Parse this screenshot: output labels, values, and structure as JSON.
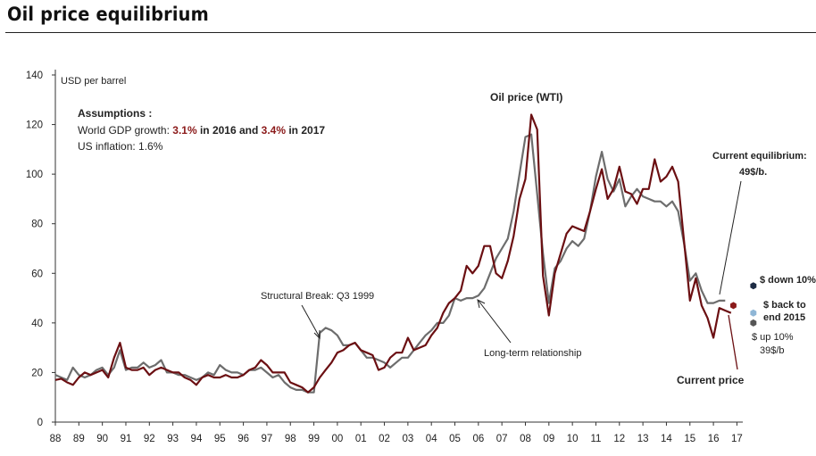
{
  "header": {
    "title": "Oil price equilibrium"
  },
  "assumptions": {
    "heading": "Assumptions :",
    "gdp_prefix": "World GDP growth: ",
    "gdp_2016": "3.1%",
    "gdp_mid": " in 2016 and ",
    "gdp_2017": "3.4%",
    "gdp_suffix": " in 2017",
    "inflation": "US inflation: 1.6%"
  },
  "annotations": {
    "structural_break": "Structural Break: Q3 1999",
    "long_term": "Long-term relationship",
    "oil_price_label": "Oil price (WTI)",
    "current_equilibrium_line1": "Current equilibrium:",
    "current_equilibrium_line2": "49$/b.",
    "current_price": "Current price",
    "down_10": "$ down 10%",
    "back_to_2015_line1": "$ back to",
    "back_to_2015_line2": "end 2015",
    "up_10_line1": "$ up 10%",
    "up_10_line2": "39$/b"
  },
  "colors": {
    "oil_price": "#6b0f12",
    "equilibrium": "#6d6d6d",
    "gdp_highlight": "#8b1a1a",
    "scenario_down": "#1d2b44",
    "scenario_back": "#8fb6d6",
    "scenario_up": "#555555",
    "current_price": "#8b1a1a"
  },
  "chart_data": {
    "type": "line",
    "title": "Oil price equilibrium",
    "ylabel": "USD per barrel",
    "xlabel": "",
    "ylim": [
      0,
      140
    ],
    "yticks": [
      0,
      20,
      40,
      60,
      80,
      100,
      120,
      140
    ],
    "xlim": [
      1988,
      2017.6
    ],
    "xticks": [
      "88",
      "89",
      "90",
      "91",
      "92",
      "93",
      "94",
      "95",
      "96",
      "97",
      "98",
      "99",
      "00",
      "01",
      "02",
      "03",
      "04",
      "05",
      "06",
      "07",
      "08",
      "09",
      "10",
      "11",
      "12",
      "13",
      "14",
      "15",
      "16",
      "17"
    ],
    "series": [
      {
        "name": "Oil price (WTI)",
        "points": [
          [
            1988.0,
            17
          ],
          [
            1988.25,
            17.5
          ],
          [
            1988.5,
            16
          ],
          [
            1988.75,
            15
          ],
          [
            1989.0,
            18
          ],
          [
            1989.25,
            20
          ],
          [
            1989.5,
            19
          ],
          [
            1989.75,
            20
          ],
          [
            1990.0,
            21
          ],
          [
            1990.25,
            18
          ],
          [
            1990.5,
            26
          ],
          [
            1990.75,
            32
          ],
          [
            1991.0,
            22
          ],
          [
            1991.25,
            21
          ],
          [
            1991.5,
            21
          ],
          [
            1991.75,
            22
          ],
          [
            1992.0,
            19
          ],
          [
            1992.25,
            21
          ],
          [
            1992.5,
            22
          ],
          [
            1992.75,
            21
          ],
          [
            1993.0,
            20
          ],
          [
            1993.25,
            20
          ],
          [
            1993.5,
            18
          ],
          [
            1993.75,
            17
          ],
          [
            1994.0,
            15
          ],
          [
            1994.25,
            18
          ],
          [
            1994.5,
            19
          ],
          [
            1994.75,
            18
          ],
          [
            1995.0,
            18
          ],
          [
            1995.25,
            19
          ],
          [
            1995.5,
            18
          ],
          [
            1995.75,
            18
          ],
          [
            1996.0,
            19
          ],
          [
            1996.25,
            21
          ],
          [
            1996.5,
            22
          ],
          [
            1996.75,
            25
          ],
          [
            1997.0,
            23
          ],
          [
            1997.25,
            20
          ],
          [
            1997.5,
            20
          ],
          [
            1997.75,
            20
          ],
          [
            1998.0,
            16
          ],
          [
            1998.25,
            15
          ],
          [
            1998.5,
            14
          ],
          [
            1998.75,
            12
          ],
          [
            1999.0,
            14
          ],
          [
            1999.25,
            18
          ],
          [
            1999.5,
            21
          ],
          [
            1999.75,
            24
          ],
          [
            2000.0,
            28
          ],
          [
            2000.25,
            29
          ],
          [
            2000.5,
            31
          ],
          [
            2000.75,
            32
          ],
          [
            2001.0,
            29
          ],
          [
            2001.25,
            28
          ],
          [
            2001.5,
            27
          ],
          [
            2001.75,
            21
          ],
          [
            2002.0,
            22
          ],
          [
            2002.25,
            26
          ],
          [
            2002.5,
            28
          ],
          [
            2002.75,
            28
          ],
          [
            2003.0,
            34
          ],
          [
            2003.25,
            29
          ],
          [
            2003.5,
            30
          ],
          [
            2003.75,
            31
          ],
          [
            2004.0,
            35
          ],
          [
            2004.25,
            38
          ],
          [
            2004.5,
            44
          ],
          [
            2004.75,
            48
          ],
          [
            2005.0,
            50
          ],
          [
            2005.25,
            53
          ],
          [
            2005.5,
            63
          ],
          [
            2005.75,
            60
          ],
          [
            2006.0,
            63
          ],
          [
            2006.25,
            71
          ],
          [
            2006.5,
            71
          ],
          [
            2006.75,
            60
          ],
          [
            2007.0,
            58
          ],
          [
            2007.25,
            65
          ],
          [
            2007.5,
            75
          ],
          [
            2007.75,
            90
          ],
          [
            2008.0,
            98
          ],
          [
            2008.25,
            124
          ],
          [
            2008.5,
            118
          ],
          [
            2008.75,
            59
          ],
          [
            2009.0,
            43
          ],
          [
            2009.25,
            60
          ],
          [
            2009.5,
            68
          ],
          [
            2009.75,
            76
          ],
          [
            2010.0,
            79
          ],
          [
            2010.25,
            78
          ],
          [
            2010.5,
            77
          ],
          [
            2010.75,
            85
          ],
          [
            2011.0,
            94
          ],
          [
            2011.25,
            102
          ],
          [
            2011.5,
            90
          ],
          [
            2011.75,
            94
          ],
          [
            2012.0,
            103
          ],
          [
            2012.25,
            93
          ],
          [
            2012.5,
            92
          ],
          [
            2012.75,
            88
          ],
          [
            2013.0,
            94
          ],
          [
            2013.25,
            94
          ],
          [
            2013.5,
            106
          ],
          [
            2013.75,
            97
          ],
          [
            2014.0,
            99
          ],
          [
            2014.25,
            103
          ],
          [
            2014.5,
            97
          ],
          [
            2014.75,
            73
          ],
          [
            2015.0,
            49
          ],
          [
            2015.25,
            58
          ],
          [
            2015.5,
            47
          ],
          [
            2015.75,
            42
          ],
          [
            2016.0,
            34
          ],
          [
            2016.25,
            46
          ],
          [
            2016.5,
            45
          ],
          [
            2016.75,
            44
          ]
        ]
      },
      {
        "name": "Long-term relationship (equilibrium)",
        "points": [
          [
            1988.0,
            19
          ],
          [
            1988.25,
            18
          ],
          [
            1988.5,
            17
          ],
          [
            1988.75,
            22
          ],
          [
            1989.0,
            19
          ],
          [
            1989.25,
            18
          ],
          [
            1989.5,
            19
          ],
          [
            1989.75,
            21
          ],
          [
            1990.0,
            22
          ],
          [
            1990.25,
            19
          ],
          [
            1990.5,
            22
          ],
          [
            1990.75,
            29
          ],
          [
            1991.0,
            21
          ],
          [
            1991.25,
            22
          ],
          [
            1991.5,
            22
          ],
          [
            1991.75,
            24
          ],
          [
            1992.0,
            22
          ],
          [
            1992.25,
            23
          ],
          [
            1992.5,
            25
          ],
          [
            1992.75,
            20
          ],
          [
            1993.0,
            20
          ],
          [
            1993.25,
            19
          ],
          [
            1993.5,
            19
          ],
          [
            1993.75,
            18
          ],
          [
            1994.0,
            17
          ],
          [
            1994.25,
            18
          ],
          [
            1994.5,
            20
          ],
          [
            1994.75,
            19
          ],
          [
            1995.0,
            23
          ],
          [
            1995.25,
            21
          ],
          [
            1995.5,
            20
          ],
          [
            1995.75,
            20
          ],
          [
            1996.0,
            19
          ],
          [
            1996.25,
            21
          ],
          [
            1996.5,
            21
          ],
          [
            1996.75,
            22
          ],
          [
            1997.0,
            20
          ],
          [
            1997.25,
            18
          ],
          [
            1997.5,
            19
          ],
          [
            1997.75,
            16
          ],
          [
            1998.0,
            14
          ],
          [
            1998.25,
            13
          ],
          [
            1998.5,
            13
          ],
          [
            1998.75,
            12
          ],
          [
            1999.0,
            12
          ],
          [
            1999.25,
            36
          ],
          [
            1999.5,
            38
          ],
          [
            1999.75,
            37
          ],
          [
            2000.0,
            35
          ],
          [
            2000.25,
            31
          ],
          [
            2000.5,
            31
          ],
          [
            2000.75,
            32
          ],
          [
            2001.0,
            29
          ],
          [
            2001.25,
            26
          ],
          [
            2001.5,
            26
          ],
          [
            2001.75,
            25
          ],
          [
            2002.0,
            24
          ],
          [
            2002.25,
            22
          ],
          [
            2002.5,
            24
          ],
          [
            2002.75,
            26
          ],
          [
            2003.0,
            26
          ],
          [
            2003.25,
            29
          ],
          [
            2003.5,
            32
          ],
          [
            2003.75,
            35
          ],
          [
            2004.0,
            37
          ],
          [
            2004.25,
            40
          ],
          [
            2004.5,
            40
          ],
          [
            2004.75,
            43
          ],
          [
            2005.0,
            50
          ],
          [
            2005.25,
            49
          ],
          [
            2005.5,
            50
          ],
          [
            2005.75,
            50
          ],
          [
            2006.0,
            51
          ],
          [
            2006.25,
            54
          ],
          [
            2006.5,
            60
          ],
          [
            2006.75,
            66
          ],
          [
            2007.0,
            70
          ],
          [
            2007.25,
            74
          ],
          [
            2007.5,
            85
          ],
          [
            2007.75,
            100
          ],
          [
            2008.0,
            115
          ],
          [
            2008.25,
            116
          ],
          [
            2008.5,
            92
          ],
          [
            2008.75,
            68
          ],
          [
            2009.0,
            48
          ],
          [
            2009.25,
            62
          ],
          [
            2009.5,
            65
          ],
          [
            2009.75,
            70
          ],
          [
            2010.0,
            73
          ],
          [
            2010.25,
            71
          ],
          [
            2010.5,
            74
          ],
          [
            2010.75,
            85
          ],
          [
            2011.0,
            99
          ],
          [
            2011.25,
            109
          ],
          [
            2011.5,
            98
          ],
          [
            2011.75,
            93
          ],
          [
            2012.0,
            98
          ],
          [
            2012.25,
            87
          ],
          [
            2012.5,
            91
          ],
          [
            2012.75,
            94
          ],
          [
            2013.0,
            91
          ],
          [
            2013.25,
            90
          ],
          [
            2013.5,
            89
          ],
          [
            2013.75,
            89
          ],
          [
            2014.0,
            87
          ],
          [
            2014.25,
            89
          ],
          [
            2014.5,
            85
          ],
          [
            2014.75,
            72
          ],
          [
            2015.0,
            57
          ],
          [
            2015.25,
            60
          ],
          [
            2015.5,
            53
          ],
          [
            2015.75,
            48
          ],
          [
            2016.0,
            48
          ],
          [
            2016.25,
            49
          ],
          [
            2016.5,
            49
          ]
        ]
      }
    ],
    "markers": [
      {
        "name": "$ down 10%",
        "x": 2017.7,
        "y": 55
      },
      {
        "name": "$ back to end 2015",
        "x": 2017.7,
        "y": 44
      },
      {
        "name": "$ up 10%",
        "x": 2017.7,
        "y": 40
      },
      {
        "name": "Current price",
        "x": 2016.85,
        "y": 47
      }
    ]
  }
}
